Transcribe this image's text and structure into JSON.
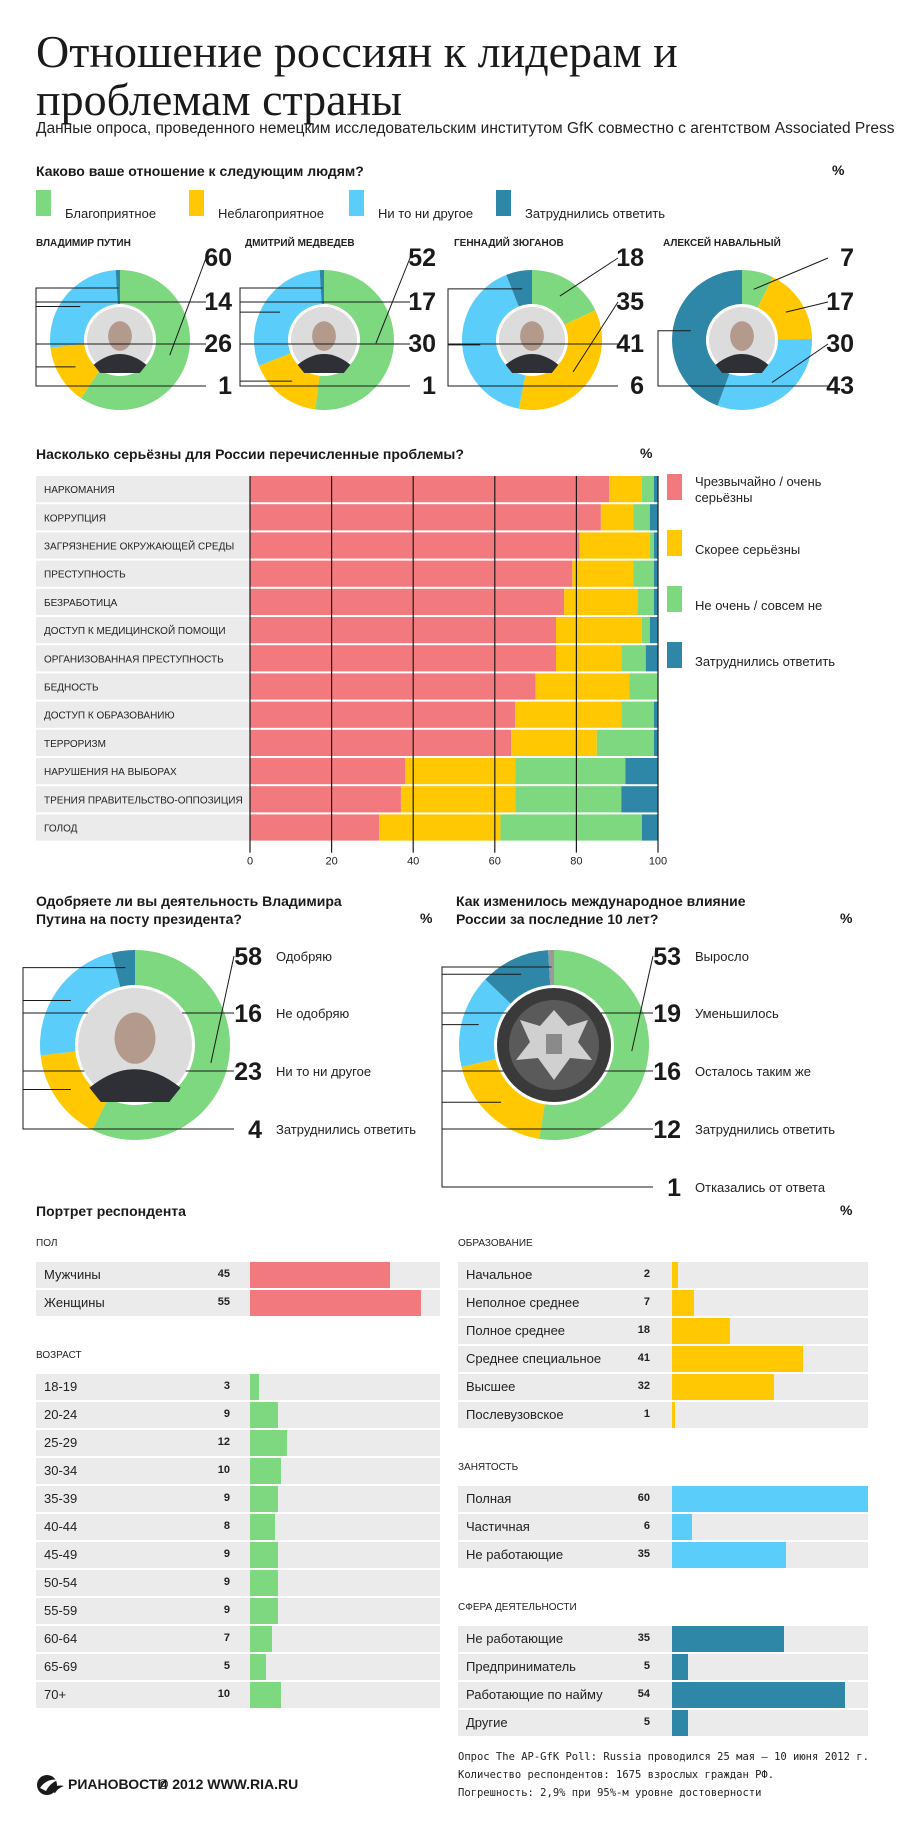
{
  "header": {
    "title": "Отношение россиян к лидерам и проблемам страны",
    "subtitle": "Данные опроса, проведенного немецким исследовательским институтом GfK совместно с агентством Associated Press"
  },
  "colors": {
    "green": "#7ed87f",
    "yellow": "#ffc800",
    "blue": "#5bcdfa",
    "teal": "#2e87a6",
    "red": "#f27a7e",
    "band": "#ebebeb",
    "photo_bg": "#dcdcdc"
  },
  "attitude": {
    "question": "Каково ваше отношение к следующим людям?",
    "percent_sign": "%",
    "legend": [
      "Благоприятное",
      "Неблагоприятное",
      "Ни то ни другое",
      "Затруднились ответить"
    ]
  },
  "problems": {
    "question": "Насколько серьёзны для России перечисленные проблемы?",
    "percent_sign": "%",
    "legend": [
      "Чрезвычайно / очень серьёзны",
      "Скорее серьёзны",
      "Не очень / совсем не",
      "Затруднились ответить"
    ]
  },
  "approval": {
    "question": "Одобряете ли вы деятельность Владимира Путина на посту президента?",
    "percent_sign": "%"
  },
  "influence": {
    "question": "Как изменилось международное влияние России за последние 10 лет?",
    "percent_sign": "%"
  },
  "portrait": {
    "title": "Портрет респондента",
    "percent_sign": "%"
  },
  "footer": {
    "brand": "РИАНОВОСТИ",
    "copyright": "© 2012 WWW.RIA.RU",
    "note1": "Опрос The AP-GfK Poll: Russia проводился 25 мая – 10 июня 2012 г.",
    "note2": "Количество респондентов: 1675 взрослых граждан РФ.",
    "note3": "Погрешность: 2,9% при 95%-м уровне достоверности"
  },
  "chart_data": [
    {
      "type": "pie",
      "name": "Владимир Путин",
      "categories": [
        "Благоприятное",
        "Неблагоприятное",
        "Ни то ни другое",
        "Затруднились ответить"
      ],
      "values": [
        60,
        14,
        26,
        1
      ]
    },
    {
      "type": "pie",
      "name": "Дмитрий Медведев",
      "categories": [
        "Благоприятное",
        "Неблагоприятное",
        "Ни то ни другое",
        "Затруднились ответить"
      ],
      "values": [
        52,
        17,
        30,
        1
      ]
    },
    {
      "type": "pie",
      "name": "Геннадий Зюганов",
      "categories": [
        "Благоприятное",
        "Неблагоприятное",
        "Ни то ни другое",
        "Затруднились ответить"
      ],
      "values": [
        18,
        35,
        41,
        6
      ]
    },
    {
      "type": "pie",
      "name": "Алексей Навальный",
      "categories": [
        "Благоприятное",
        "Неблагоприятное",
        "Ни то ни другое",
        "Затруднились ответить"
      ],
      "values": [
        7,
        17,
        30,
        43
      ]
    },
    {
      "type": "bar",
      "orientation": "horizontal",
      "stacked": true,
      "title": "Насколько серьёзны для России перечисленные проблемы?",
      "categories": [
        "Наркомания",
        "Коррупция",
        "Загрязнение окружающей среды",
        "Преступность",
        "Безработица",
        "Доступ к медицинской помощи",
        "Организованная преступность",
        "Бедность",
        "Доступ к образованию",
        "Терроризм",
        "Нарушения на выборах",
        "Трения правительство-оппозиция",
        "Голод"
      ],
      "series": [
        {
          "name": "Чрезвычайно / очень серьёзны",
          "values": [
            88,
            86,
            80,
            79,
            77,
            75,
            75,
            70,
            65,
            64,
            38,
            37,
            32
          ]
        },
        {
          "name": "Скорее серьёзны",
          "values": [
            8,
            8,
            17,
            15,
            18,
            21,
            16,
            23,
            26,
            21,
            27,
            28,
            30
          ]
        },
        {
          "name": "Не очень / совсем не",
          "values": [
            3,
            4,
            1,
            5,
            4,
            2,
            6,
            7,
            8,
            14,
            27,
            26,
            35
          ]
        },
        {
          "name": "Затруднились ответить",
          "values": [
            1,
            2,
            1,
            1,
            1,
            2,
            3,
            0,
            1,
            1,
            8,
            9,
            4
          ]
        }
      ],
      "xlim": [
        0,
        100
      ],
      "xticks": [
        "0",
        "20",
        "40",
        "60",
        "80",
        "100"
      ],
      "grid": true
    },
    {
      "type": "pie",
      "title": "Одобряете ли вы деятельность Владимира Путина на посту президента?",
      "categories": [
        "Одобряю",
        "Не одобряю",
        "Ни то ни другое",
        "Затруднились ответить"
      ],
      "values": [
        58,
        16,
        23,
        4
      ]
    },
    {
      "type": "pie",
      "title": "Как изменилось международное влияние России за последние 10 лет?",
      "categories": [
        "Выросло",
        "Уменьшилось",
        "Осталось таким же",
        "Затруднились ответить",
        "Отказались от ответа"
      ],
      "values": [
        53,
        19,
        16,
        12,
        1
      ]
    },
    {
      "type": "bar",
      "orientation": "horizontal",
      "title": "Пол",
      "categories": [
        "Мужчины",
        "Женщины"
      ],
      "values": [
        45,
        55
      ]
    },
    {
      "type": "bar",
      "orientation": "horizontal",
      "title": "Возраст",
      "categories": [
        "18-19",
        "20-24",
        "25-29",
        "30-34",
        "35-39",
        "40-44",
        "45-49",
        "50-54",
        "55-59",
        "60-64",
        "65-69",
        "70+"
      ],
      "values": [
        3,
        9,
        12,
        10,
        9,
        8,
        9,
        9,
        9,
        7,
        5,
        10
      ]
    },
    {
      "type": "bar",
      "orientation": "horizontal",
      "title": "Образование",
      "categories": [
        "Начальное",
        "Неполное среднее",
        "Полное среднее",
        "Среднее специальное",
        "Высшее",
        "Послевузовское"
      ],
      "values": [
        2,
        7,
        18,
        41,
        32,
        1
      ]
    },
    {
      "type": "bar",
      "orientation": "horizontal",
      "title": "Занятость",
      "categories": [
        "Полная",
        "Частичная",
        "Не работающие"
      ],
      "values": [
        60,
        6,
        35
      ]
    },
    {
      "type": "bar",
      "orientation": "horizontal",
      "title": "Сфера деятельности",
      "categories": [
        "Не работающие",
        "Предприниматель",
        "Работающие по найму",
        "Другие"
      ],
      "values": [
        35,
        5,
        54,
        5
      ]
    }
  ]
}
